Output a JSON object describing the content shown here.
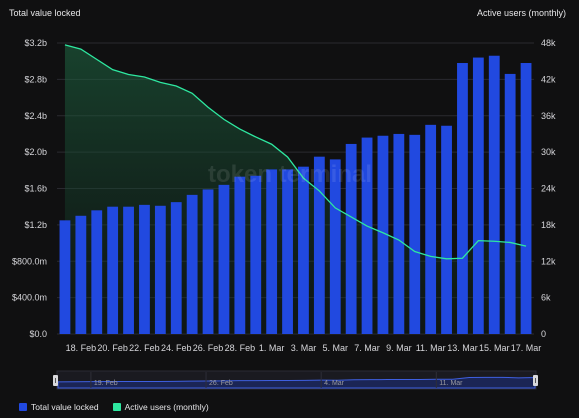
{
  "chart_data": {
    "type": "bar",
    "watermark": "token terminal",
    "left_axis": {
      "title": "Total value locked",
      "ticks": [
        0,
        400000000,
        800000000,
        1200000000,
        1600000000,
        2000000000,
        2400000000,
        2800000000,
        3200000000
      ],
      "tick_labels": [
        "$0.0",
        "$400.0m",
        "$800.0m",
        "$1.2b",
        "$1.6b",
        "$2.0b",
        "$2.4b",
        "$2.8b",
        "$3.2b"
      ],
      "ylim": [
        0,
        3200000000
      ]
    },
    "right_axis": {
      "title": "Active users (monthly)",
      "ticks": [
        0,
        6000,
        12000,
        18000,
        24000,
        30000,
        36000,
        42000,
        48000
      ],
      "tick_labels": [
        "0",
        "6k",
        "12k",
        "18k",
        "24k",
        "30k",
        "36k",
        "42k",
        "48k"
      ],
      "ylim": [
        0,
        48000
      ]
    },
    "x_tick_labels": [
      "18. Feb",
      "20. Feb",
      "22. Feb",
      "24. Feb",
      "26. Feb",
      "28. Feb",
      "1. Mar",
      "3. Mar",
      "5. Mar",
      "7. Mar",
      "9. Mar",
      "11. Mar",
      "13. Mar",
      "15. Mar",
      "17. Mar"
    ],
    "categories": [
      "17. Feb",
      "18. Feb",
      "19. Feb",
      "20. Feb",
      "21. Feb",
      "22. Feb",
      "23. Feb",
      "24. Feb",
      "25. Feb",
      "26. Feb",
      "27. Feb",
      "28. Feb",
      "29. Feb",
      "1. Mar",
      "2. Mar",
      "3. Mar",
      "4. Mar",
      "5. Mar",
      "6. Mar",
      "7. Mar",
      "8. Mar",
      "9. Mar",
      "10. Mar",
      "11. Mar",
      "12. Mar",
      "13. Mar",
      "14. Mar",
      "15. Mar",
      "16. Mar",
      "17. Mar"
    ],
    "series": [
      {
        "name": "Total value locked",
        "type": "bar",
        "axis": "left",
        "color": "#2149e0",
        "values": [
          1250000000,
          1300000000,
          1360000000,
          1400000000,
          1400000000,
          1420000000,
          1410000000,
          1450000000,
          1530000000,
          1590000000,
          1640000000,
          1730000000,
          1740000000,
          1810000000,
          1810000000,
          1840000000,
          1950000000,
          1920000000,
          2090000000,
          2160000000,
          2180000000,
          2200000000,
          2190000000,
          2300000000,
          2290000000,
          2980000000,
          3040000000,
          3060000000,
          2860000000,
          2980000000
        ]
      },
      {
        "name": "Active users (monthly)",
        "type": "area",
        "axis": "right",
        "color": "#2ee8a0",
        "values": [
          47700,
          47000,
          45300,
          43600,
          42800,
          42400,
          41500,
          40900,
          39700,
          37400,
          35400,
          33800,
          32500,
          31300,
          29200,
          25700,
          23600,
          20800,
          19300,
          17800,
          16700,
          15500,
          13600,
          12800,
          12400,
          12500,
          15400,
          15300,
          15100,
          14500
        ]
      }
    ],
    "navigator": {
      "labels": [
        "19. Feb",
        "26. Feb",
        "4. Mar",
        "11. Mar"
      ]
    },
    "legend": {
      "placement": "bottom-left",
      "items": [
        "Total value locked",
        "Active users (monthly)"
      ]
    }
  }
}
